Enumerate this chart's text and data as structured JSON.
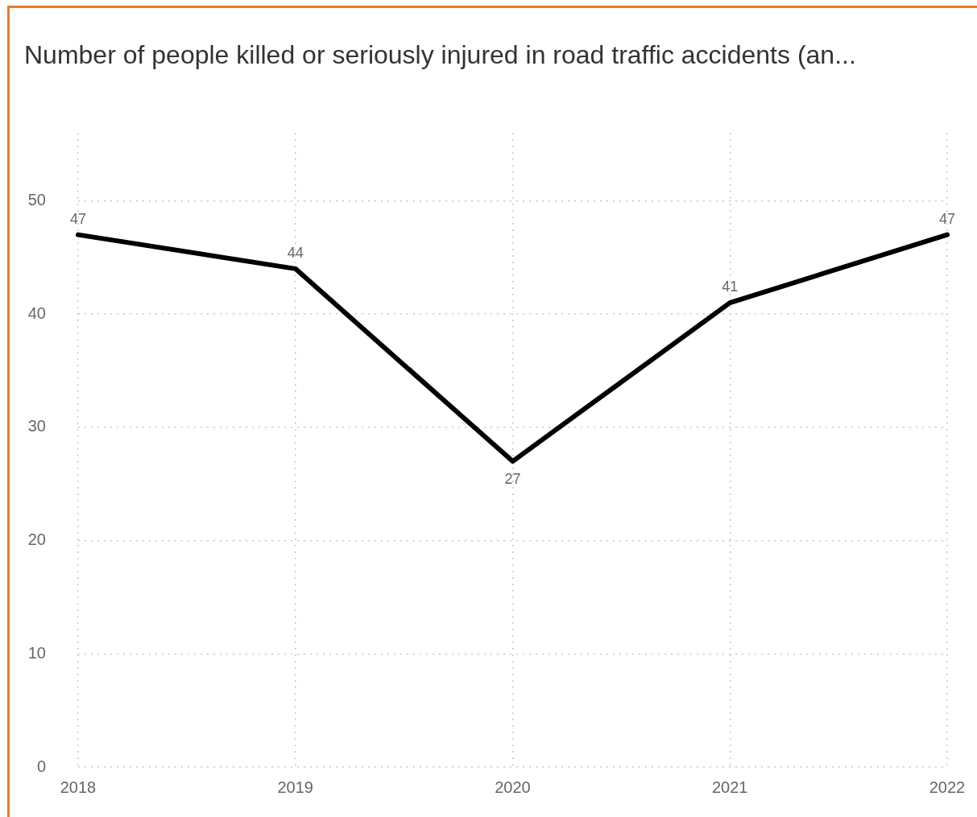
{
  "chart_data": {
    "type": "line",
    "title": "Number of people killed or seriously injured in road traffic accidents (an...",
    "categories": [
      "2018",
      "2019",
      "2020",
      "2021",
      "2022"
    ],
    "values": [
      47,
      44,
      27,
      41,
      47
    ],
    "color": "#000000",
    "ylim": [
      0,
      56
    ],
    "yticks": [
      0,
      10,
      20,
      30,
      40,
      50
    ],
    "grid": true,
    "data_labels": true,
    "marker": "none",
    "line_style": "solid"
  }
}
